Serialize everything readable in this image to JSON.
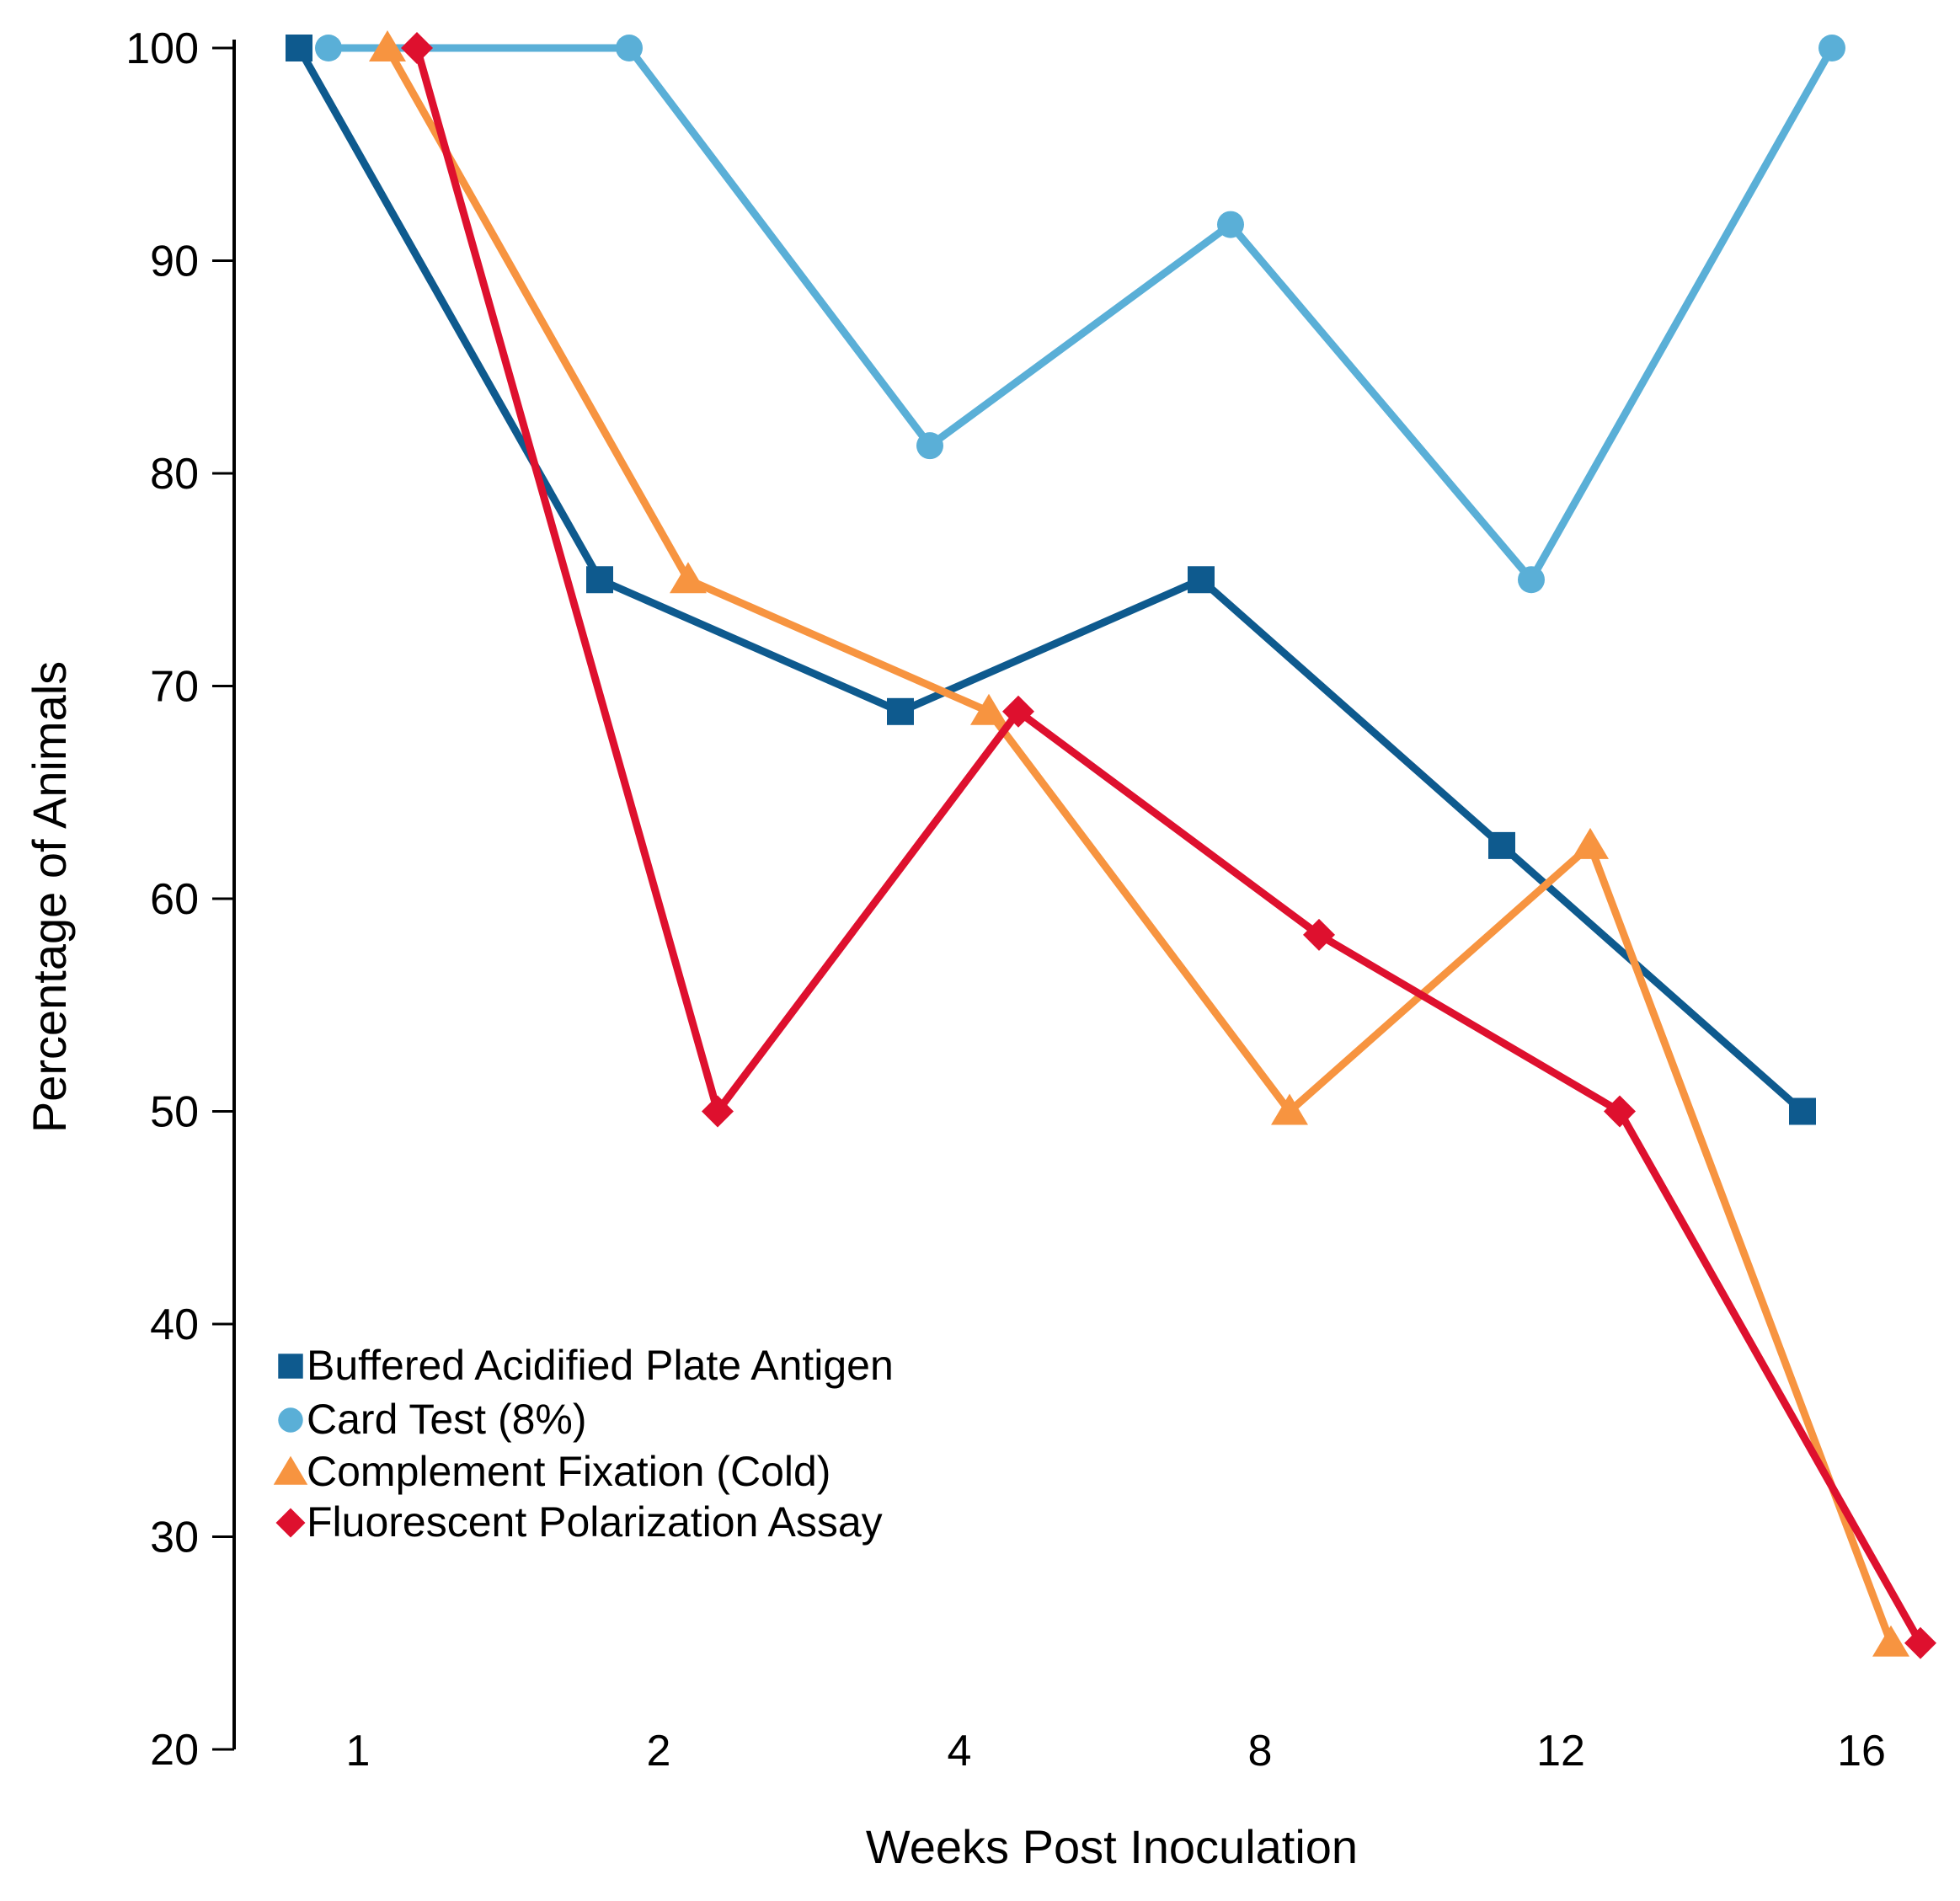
{
  "chart_data": {
    "type": "line",
    "title": "",
    "xlabel": "Weeks Post Inoculation",
    "ylabel": "Percentage of Animals",
    "x_tick_labels": [
      "1",
      "2",
      "4",
      "8",
      "12",
      "16"
    ],
    "y_tick_labels": [
      "20",
      "30",
      "40",
      "50",
      "60",
      "70",
      "80",
      "90",
      "100"
    ],
    "ylim": [
      20,
      100
    ],
    "grid": false,
    "legend_position": "lower-left",
    "series": [
      {
        "name": "Buffered Acidified Plate Antigen",
        "marker": "square",
        "color": "#0e5a8e",
        "x_categories": [
          "1",
          "2",
          "4",
          "8",
          "12",
          "16"
        ],
        "values": [
          100,
          75,
          68.8,
          75,
          62.5,
          50
        ]
      },
      {
        "name": "Card Test (8%)",
        "marker": "circle",
        "color": "#5aafd7",
        "x_categories": [
          "1",
          "2",
          "4",
          "8",
          "12",
          "16"
        ],
        "values": [
          100,
          100,
          81.3,
          91.7,
          75,
          100
        ]
      },
      {
        "name": "Complement Fixation (Cold)",
        "marker": "triangle",
        "color": "#f79440",
        "x_categories": [
          "1",
          "2",
          "4",
          "8",
          "12",
          "16"
        ],
        "values": [
          100,
          75,
          68.8,
          50,
          62.5,
          25
        ]
      },
      {
        "name": "Fluorescent Polarization Assay",
        "marker": "diamond",
        "color": "#de102e",
        "x_categories": [
          "1",
          "2",
          "4",
          "8",
          "12",
          "16"
        ],
        "values": [
          100,
          50,
          68.8,
          58.3,
          50,
          25
        ]
      }
    ]
  }
}
